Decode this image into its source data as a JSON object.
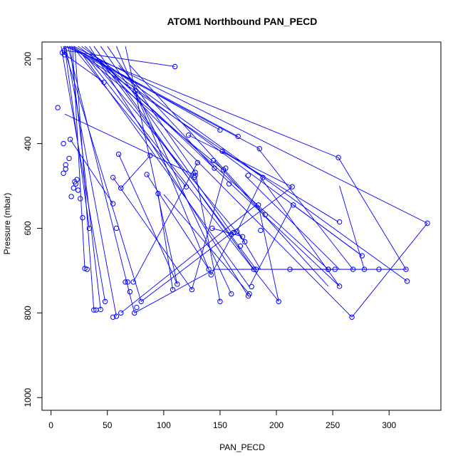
{
  "chart_data": {
    "type": "scatter",
    "title": "ATOM1 Northbound PAN_PECD",
    "xlabel": "PAN_PECD",
    "ylabel": "Pressure (mbar)",
    "xlim": [
      -8,
      346
    ],
    "ylim": [
      1030,
      160
    ],
    "y_reversed": true,
    "x_ticks": [
      0,
      50,
      100,
      150,
      200,
      250,
      300
    ],
    "y_ticks": [
      200,
      400,
      600,
      800,
      1000
    ],
    "grid": false,
    "legend": "none",
    "series": [
      {
        "color": "#0000ff",
        "x": [
          10,
          12,
          11,
          13,
          13,
          16,
          18,
          20,
          21,
          23,
          22,
          24,
          26,
          28,
          30,
          32,
          34,
          38,
          40,
          44,
          48,
          55,
          58,
          62,
          66,
          68,
          70,
          73,
          74,
          76,
          80,
          6,
          11,
          12,
          17
        ],
        "y": [
          185,
          180,
          400,
          450,
          460,
          435,
          525,
          505,
          490,
          485,
          495,
          510,
          530,
          575,
          695,
          697,
          600,
          793,
          793,
          792,
          773,
          810,
          808,
          800,
          727,
          727,
          750,
          727,
          800,
          787,
          773,
          315,
          470,
          190,
          390
        ]
      },
      {
        "color": "#0000ff",
        "x": [
          47,
          60,
          75,
          85,
          88,
          95,
          55,
          55,
          58,
          62,
          110,
          120,
          122,
          125,
          127,
          128,
          128,
          130,
          112,
          108
        ],
        "y": [
          255,
          425,
          275,
          473,
          428,
          518,
          480,
          542,
          600,
          505,
          218,
          502,
          380,
          745,
          480,
          468,
          475,
          445,
          732,
          745
        ]
      },
      {
        "color": "#0000ff",
        "x": [
          140,
          142,
          144,
          145,
          150,
          152,
          153,
          155,
          158,
          160,
          162,
          165,
          168,
          170,
          172,
          175,
          176,
          178,
          180,
          182,
          184,
          186,
          188,
          190,
          202,
          212,
          215,
          160,
          175,
          150,
          166
        ],
        "y": [
          697,
          710,
          440,
          458,
          773,
          418,
          462,
          458,
          495,
          755,
          610,
          608,
          642,
          620,
          632,
          475,
          755,
          738,
          697,
          697,
          545,
          605,
          480,
          568,
          773,
          697,
          545,
          615,
          760,
          368,
          383
        ]
      },
      {
        "color": "#0000ff",
        "x": [
          246,
          252,
          255,
          256,
          256,
          267,
          268,
          276,
          278,
          291,
          315,
          316,
          334,
          214,
          185,
          143,
          246
        ],
        "y": [
          697,
          697,
          433,
          585,
          737,
          810,
          697,
          665,
          697,
          697,
          697,
          725,
          588,
          502,
          412,
          600,
          697
        ]
      }
    ],
    "connectors": [
      [
        [
          10,
          185
        ],
        [
          47,
          255
        ]
      ],
      [
        [
          13,
          180
        ],
        [
          110,
          218
        ]
      ],
      [
        [
          12,
          170
        ],
        [
          255,
          433
        ]
      ],
      [
        [
          14,
          170
        ],
        [
          185,
          412
        ]
      ],
      [
        [
          16,
          170
        ],
        [
          166,
          383
        ]
      ],
      [
        [
          18,
          170
        ],
        [
          150,
          368
        ]
      ],
      [
        [
          20,
          170
        ],
        [
          334,
          588
        ]
      ],
      [
        [
          24,
          170
        ],
        [
          276,
          665
        ]
      ],
      [
        [
          27,
          170
        ],
        [
          316,
          725
        ]
      ],
      [
        [
          30,
          170
        ],
        [
          256,
          737
        ]
      ],
      [
        [
          34,
          170
        ],
        [
          175,
          760
        ]
      ],
      [
        [
          38,
          170
        ],
        [
          180,
          697
        ]
      ],
      [
        [
          44,
          170
        ],
        [
          160,
          610
        ]
      ],
      [
        [
          50,
          170
        ],
        [
          128,
          468
        ]
      ],
      [
        [
          58,
          170
        ],
        [
          142,
          710
        ]
      ],
      [
        [
          66,
          170
        ],
        [
          112,
          732
        ]
      ],
      [
        [
          11,
          170
        ],
        [
          80,
          773
        ]
      ],
      [
        [
          13,
          170
        ],
        [
          58,
          808
        ]
      ],
      [
        [
          15,
          170
        ],
        [
          74,
          800
        ]
      ],
      [
        [
          17,
          170
        ],
        [
          44,
          792
        ]
      ],
      [
        [
          19,
          170
        ],
        [
          30,
          697
        ]
      ],
      [
        [
          21,
          170
        ],
        [
          38,
          793
        ]
      ],
      [
        [
          12,
          170
        ],
        [
          34,
          600
        ]
      ],
      [
        [
          9,
          170
        ],
        [
          48,
          773
        ]
      ],
      [
        [
          22,
          180
        ],
        [
          120,
          502
        ]
      ],
      [
        [
          25,
          185
        ],
        [
          188,
          480
        ]
      ],
      [
        [
          28,
          190
        ],
        [
          176,
          738
        ]
      ],
      [
        [
          30,
          195
        ],
        [
          153,
          462
        ]
      ],
      [
        [
          33,
          200
        ],
        [
          202,
          773
        ]
      ],
      [
        [
          36,
          200
        ],
        [
          172,
          632
        ]
      ],
      [
        [
          40,
          200
        ],
        [
          267,
          810
        ]
      ],
      [
        [
          43,
          205
        ],
        [
          246,
          697
        ]
      ],
      [
        [
          46,
          210
        ],
        [
          182,
          697
        ]
      ],
      [
        [
          60,
          215
        ],
        [
          145,
          458
        ]
      ],
      [
        [
          70,
          215
        ],
        [
          190,
          568
        ]
      ],
      [
        [
          12,
          330
        ],
        [
          128,
          475
        ]
      ],
      [
        [
          17,
          390
        ],
        [
          55,
          542
        ]
      ],
      [
        [
          95,
          518
        ],
        [
          108,
          745
        ]
      ],
      [
        [
          88,
          428
        ],
        [
          62,
          505
        ]
      ],
      [
        [
          55,
          480
        ],
        [
          125,
          745
        ]
      ],
      [
        [
          60,
          425
        ],
        [
          112,
          732
        ]
      ],
      [
        [
          75,
          275
        ],
        [
          160,
          755
        ]
      ],
      [
        [
          85,
          473
        ],
        [
          140,
          697
        ]
      ],
      [
        [
          130,
          445
        ],
        [
          73,
          727
        ]
      ],
      [
        [
          125,
          745
        ],
        [
          155,
          458
        ]
      ],
      [
        [
          128,
          468
        ],
        [
          150,
          773
        ]
      ],
      [
        [
          122,
          380
        ],
        [
          214,
          502
        ]
      ],
      [
        [
          100,
          520
        ],
        [
          176,
          755
        ]
      ],
      [
        [
          62,
          800
        ],
        [
          182,
          545
        ]
      ],
      [
        [
          80,
          773
        ],
        [
          214,
          502
        ]
      ],
      [
        [
          74,
          800
        ],
        [
          145,
          697
        ]
      ],
      [
        [
          143,
          600
        ],
        [
          170,
          620
        ]
      ],
      [
        [
          176,
          738
        ],
        [
          214,
          545
        ]
      ],
      [
        [
          184,
          545
        ],
        [
          202,
          773
        ]
      ],
      [
        [
          166,
          608
        ],
        [
          186,
          697
        ]
      ],
      [
        [
          142,
          710
        ],
        [
          162,
          610
        ]
      ],
      [
        [
          152,
          418
        ],
        [
          255,
          585
        ]
      ],
      [
        [
          165,
          608
        ],
        [
          188,
          480
        ]
      ],
      [
        [
          145,
          440
        ],
        [
          246,
          737
        ]
      ],
      [
        [
          172,
          475
        ],
        [
          256,
          697
        ]
      ],
      [
        [
          184,
          412
        ],
        [
          268,
          697
        ]
      ],
      [
        [
          186,
          480
        ],
        [
          256,
          737
        ]
      ],
      [
        [
          215,
          545
        ],
        [
          276,
          665
        ]
      ],
      [
        [
          212,
          697
        ],
        [
          316,
          697
        ]
      ],
      [
        [
          256,
          500
        ],
        [
          278,
          697
        ]
      ],
      [
        [
          255,
          433
        ],
        [
          315,
          697
        ]
      ],
      [
        [
          267,
          810
        ],
        [
          334,
          588
        ]
      ],
      [
        [
          145,
          697
        ],
        [
          250,
          697
        ]
      ]
    ]
  }
}
